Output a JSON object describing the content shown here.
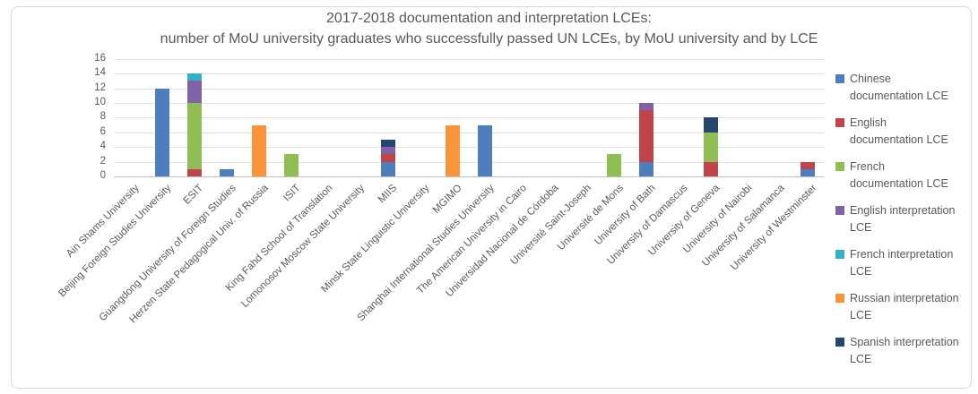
{
  "title": {
    "line1": "2017-2018 documentation and interpretation LCEs:",
    "line2": "number of MoU university graduates who successfully passed UN LCEs, by MoU university and by LCE"
  },
  "chart_data": {
    "type": "bar",
    "stacked": true,
    "title": "2017-2018 documentation and interpretation LCEs: number of MoU university graduates who successfully passed UN LCEs, by MoU university and by LCE",
    "xlabel": "",
    "ylabel": "",
    "ylim": [
      0,
      16
    ],
    "yticks": [
      0,
      2,
      4,
      6,
      8,
      10,
      12,
      14,
      16
    ],
    "grid": true,
    "legend_position": "right",
    "categories": [
      "Ain Shams University",
      "Beijing Foreign Studies University",
      "ESIT",
      "Guangdong University of Foreign Studies",
      "Herzen State Pedagogical Univ. of Russia",
      "ISIT",
      "King Fahd School of Translation",
      "Lomonosov Moscow State University",
      "MIIS",
      "Minsk State Linguistic University",
      "MGIMO",
      "Shanghai International Studies University",
      "The American University in Cairo",
      "Universidad Nacional de Córdoba",
      "Université Saint-Joseph",
      "Université de Mons",
      "University of Bath",
      "University of Damascus",
      "University of Geneva",
      "University of Nairobi",
      "University of Salamanca",
      "University of Westminster"
    ],
    "series": [
      {
        "name": "Chinese documentation LCE",
        "legend_lines": [
          "Chinese",
          "documentation LCE"
        ],
        "color": "#4E7EBE",
        "values": [
          0,
          12,
          0,
          1,
          0,
          0,
          0,
          0,
          2,
          0,
          0,
          7,
          0,
          0,
          0,
          0,
          2,
          0,
          0,
          0,
          0,
          1
        ]
      },
      {
        "name": "English documentation LCE",
        "legend_lines": [
          "English",
          "documentation LCE"
        ],
        "color": "#C2444B",
        "values": [
          0,
          0,
          1,
          0,
          0,
          0,
          0,
          0,
          1,
          0,
          0,
          0,
          0,
          0,
          0,
          0,
          7,
          0,
          2,
          0,
          0,
          1
        ]
      },
      {
        "name": "French documentation LCE",
        "legend_lines": [
          "French",
          "documentation LCE"
        ],
        "color": "#90BE55",
        "values": [
          0,
          0,
          9,
          0,
          0,
          3,
          0,
          0,
          0,
          0,
          0,
          0,
          0,
          0,
          0,
          3,
          0,
          0,
          4,
          0,
          0,
          0
        ]
      },
      {
        "name": "English interpretation LCE",
        "legend_lines": [
          "English interpretation",
          "LCE"
        ],
        "color": "#8161A8",
        "values": [
          0,
          0,
          3,
          0,
          0,
          0,
          0,
          0,
          1,
          0,
          0,
          0,
          0,
          0,
          0,
          0,
          1,
          0,
          0,
          0,
          0,
          0
        ]
      },
      {
        "name": "French interpretation LCE",
        "legend_lines": [
          "French interpretation",
          "LCE"
        ],
        "color": "#35AFC8",
        "values": [
          0,
          0,
          1,
          0,
          0,
          0,
          0,
          0,
          0,
          0,
          0,
          0,
          0,
          0,
          0,
          0,
          0,
          0,
          0,
          0,
          0,
          0
        ]
      },
      {
        "name": "Russian interpretation LCE",
        "legend_lines": [
          "Russian interpretation",
          "LCE"
        ],
        "color": "#F9943B",
        "values": [
          0,
          0,
          0,
          0,
          7,
          0,
          0,
          0,
          0,
          0,
          7,
          0,
          0,
          0,
          0,
          0,
          0,
          0,
          0,
          0,
          0,
          0
        ]
      },
      {
        "name": "Spanish interpretation LCE",
        "legend_lines": [
          "Spanish interpretation",
          "LCE"
        ],
        "color": "#27466F",
        "values": [
          0,
          0,
          0,
          0,
          0,
          0,
          0,
          0,
          1,
          0,
          0,
          0,
          0,
          0,
          0,
          0,
          0,
          0,
          2,
          0,
          0,
          0
        ]
      }
    ]
  },
  "styles": {
    "text_color": "#595959",
    "gridline_color": "#e3e3e3",
    "axis_color": "#bfbfbf",
    "frame_border": "#d9d9d9",
    "background": "#ffffff"
  }
}
